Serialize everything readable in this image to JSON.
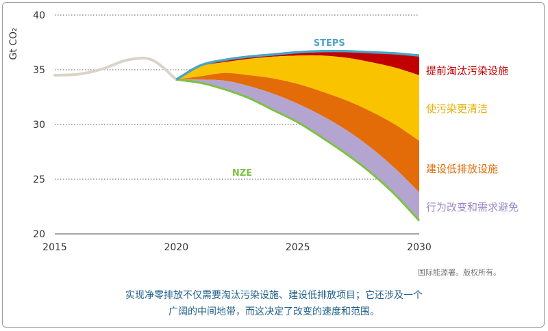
{
  "chart_data": {
    "type": "area",
    "ylabel": "Gt CO₂",
    "xlim": [
      2015,
      2030
    ],
    "ylim": [
      20,
      40
    ],
    "x_ticks": [
      2015,
      2020,
      2025,
      2030
    ],
    "y_ticks": [
      20,
      25,
      30,
      35,
      40
    ],
    "grid": true,
    "historical": {
      "x": [
        2015,
        2016,
        2017,
        2018,
        2019,
        2020
      ],
      "y": [
        34.5,
        34.6,
        35.1,
        35.9,
        35.9,
        34.1
      ],
      "color": "#d9d4c7"
    },
    "steps": {
      "name": "STEPS",
      "x": [
        2020,
        2021,
        2022,
        2023,
        2024,
        2025,
        2026,
        2027,
        2028,
        2029,
        2030
      ],
      "y": [
        34.1,
        35.4,
        35.9,
        36.2,
        36.4,
        36.6,
        36.7,
        36.7,
        36.6,
        36.5,
        36.3
      ],
      "color": "#4aa3c8"
    },
    "nze": {
      "name": "NZE",
      "x": [
        2020,
        2021,
        2022,
        2023,
        2024,
        2025,
        2026,
        2027,
        2028,
        2029,
        2030
      ],
      "y": [
        34.1,
        33.8,
        33.2,
        32.4,
        31.3,
        30.2,
        28.8,
        27.3,
        25.6,
        23.6,
        21.2
      ],
      "color": "#7cc242"
    },
    "wedges": [
      {
        "label": "提前淘汰污染设施",
        "color": "#c00000",
        "upper": [
          34.1,
          35.4,
          35.9,
          36.2,
          36.4,
          36.6,
          36.7,
          36.7,
          36.6,
          36.5,
          36.3
        ],
        "lower": [
          34.1,
          35.3,
          35.7,
          36.0,
          36.2,
          36.3,
          36.3,
          36.1,
          35.7,
          35.2,
          34.5
        ]
      },
      {
        "label": "使污染更清洁",
        "color": "#f9c300",
        "upper": [
          34.1,
          35.3,
          35.7,
          36.0,
          36.2,
          36.3,
          36.3,
          36.1,
          35.7,
          35.2,
          34.5
        ],
        "lower": [
          34.1,
          34.4,
          34.7,
          34.5,
          34.2,
          33.7,
          33.0,
          32.2,
          31.2,
          30.0,
          28.5
        ]
      },
      {
        "label": "建设低排放设施",
        "color": "#e36c09",
        "upper": [
          34.1,
          34.4,
          34.7,
          34.5,
          34.2,
          33.7,
          33.0,
          32.2,
          31.2,
          30.0,
          28.5
        ],
        "lower": [
          34.1,
          34.1,
          34.0,
          33.5,
          32.8,
          31.9,
          30.8,
          29.5,
          27.9,
          26.0,
          23.8
        ]
      },
      {
        "label": "行为改变和需求避免",
        "color": "#b4a4d0",
        "upper": [
          34.1,
          34.1,
          34.0,
          33.5,
          32.8,
          31.9,
          30.8,
          29.5,
          27.9,
          26.0,
          23.8
        ],
        "lower": [
          34.1,
          33.8,
          33.2,
          32.4,
          31.3,
          30.2,
          28.8,
          27.3,
          25.6,
          23.6,
          21.2
        ]
      }
    ]
  },
  "copyright": "国际能源署。版权所有。",
  "caption": {
    "line1": "实现净零排放不仅需要淘汰污染设施、建设低排放项目；它还涉及一个",
    "line2": "广阔的中间地带，而这决定了改变的速度和范围。"
  },
  "colors": {
    "caption": "#1f5f8b",
    "frame": "#9a9a9a",
    "grid": "#777777"
  }
}
